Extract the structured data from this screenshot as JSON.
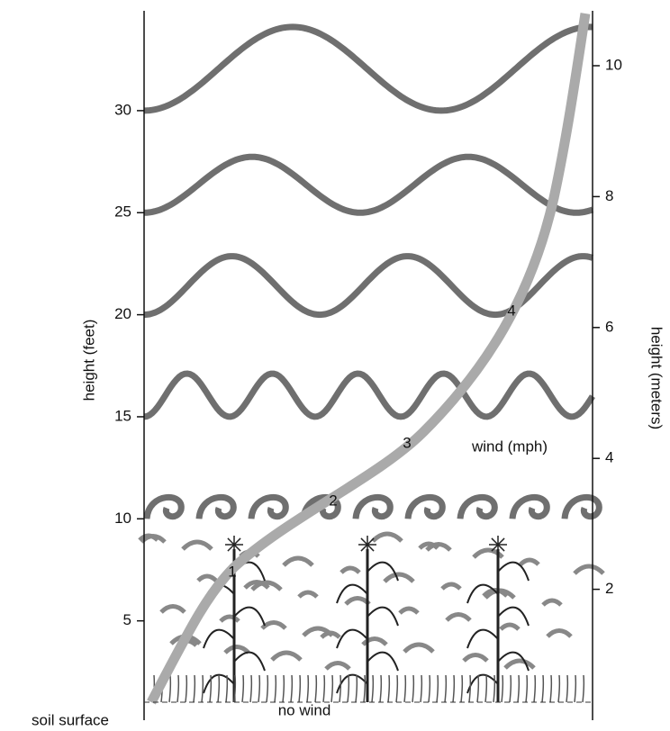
{
  "left_axis": {
    "label": "height (feet)",
    "ticks": [
      5,
      10,
      15,
      20,
      25,
      30
    ]
  },
  "right_axis": {
    "label": "height (meters)",
    "ticks": [
      2,
      4,
      6,
      8,
      10
    ]
  },
  "labels": {
    "wind": "wind (mph)",
    "no_wind": "no wind",
    "soil": "soil surface"
  },
  "curve_labels": [
    "1",
    "2",
    "3",
    "4"
  ]
}
